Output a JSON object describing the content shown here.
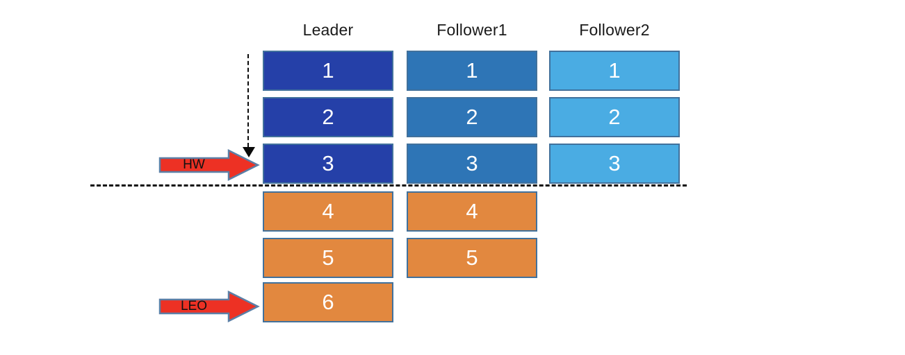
{
  "columns": [
    {
      "header": "Leader",
      "fill": "#2540A8",
      "blocks": [
        {
          "label": "1",
          "state": "committed"
        },
        {
          "label": "2",
          "state": "committed"
        },
        {
          "label": "3",
          "state": "committed"
        },
        {
          "label": "4",
          "state": "uncommitted"
        },
        {
          "label": "5",
          "state": "uncommitted"
        },
        {
          "label": "6",
          "state": "uncommitted"
        }
      ]
    },
    {
      "header": "Follower1",
      "fill": "#2E75B6",
      "blocks": [
        {
          "label": "1",
          "state": "committed"
        },
        {
          "label": "2",
          "state": "committed"
        },
        {
          "label": "3",
          "state": "committed"
        },
        {
          "label": "4",
          "state": "uncommitted"
        },
        {
          "label": "5",
          "state": "uncommitted"
        }
      ]
    },
    {
      "header": "Follower2",
      "fill": "#4AACE3",
      "blocks": [
        {
          "label": "1",
          "state": "committed"
        },
        {
          "label": "2",
          "state": "committed"
        },
        {
          "label": "3",
          "state": "committed"
        }
      ]
    }
  ],
  "annotations": {
    "hw_label": "HW",
    "leo_label": "LEO"
  },
  "colors": {
    "uncommitted_fill": "#E2883F",
    "block_border": "#41719C",
    "block_text": "#FFFFFF",
    "arrow_fill": "#ED3124",
    "arrow_border": "#5B7FA6",
    "dashed_line": "#0A0A0A"
  }
}
